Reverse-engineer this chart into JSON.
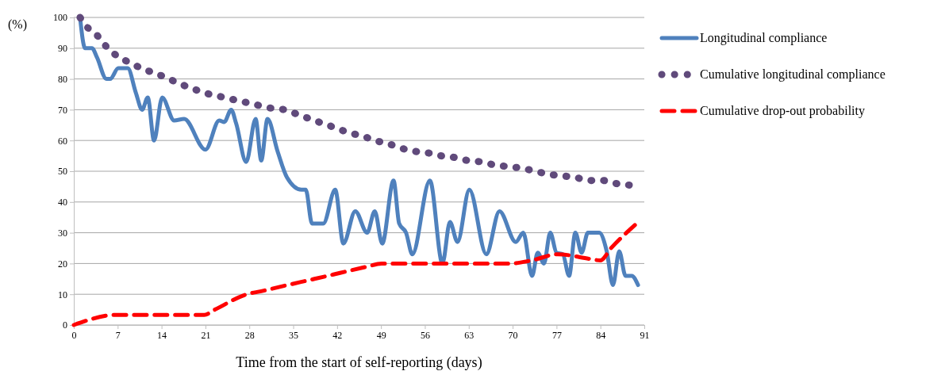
{
  "chart_data": {
    "type": "line",
    "xlabel": "Time from the start of self-reporting (days)",
    "ylabel": "(%)",
    "xlim": [
      0,
      91
    ],
    "xticks": [
      0,
      7,
      14,
      21,
      28,
      35,
      42,
      49,
      56,
      63,
      70,
      77,
      84,
      91
    ],
    "ylim": [
      0,
      100
    ],
    "yticks": [
      0,
      10,
      20,
      30,
      40,
      50,
      60,
      70,
      80,
      90,
      100
    ],
    "grid": "y",
    "legend": "right",
    "marker": "none",
    "series": [
      {
        "name": "Longitudinal compliance",
        "color": "#4f81bd",
        "line_style": "solid",
        "x": [
          1,
          1.8,
          2.9,
          3.7,
          5.2,
          5.8,
          7.1,
          8.6,
          9.9,
          10.9,
          11.8,
          12.8,
          14.1,
          16,
          17.6,
          21,
          23.2,
          24,
          25.1,
          25.9,
          27.5,
          29,
          29.9,
          30.9,
          32.5,
          34,
          36.3,
          37,
          38,
          39.8,
          41.7,
          43,
          44.9,
          46.8,
          48,
          49.2,
          51,
          51.9,
          53,
          54,
          56.8,
          58.8,
          60,
          61.2,
          63.1,
          65.8,
          67.9,
          70.5,
          71.7,
          73.1,
          74,
          75,
          76,
          77,
          78,
          79,
          80,
          81,
          82,
          83,
          83.8,
          85,
          86,
          87,
          88,
          89,
          90
        ],
        "values": [
          100,
          90,
          90,
          87,
          80,
          80,
          83.5,
          83.5,
          75.5,
          70,
          74,
          60,
          74,
          66.5,
          67,
          57,
          66.5,
          66,
          70,
          65.5,
          53,
          67,
          53.5,
          67,
          56.5,
          48,
          44,
          44,
          33,
          33,
          44,
          26.5,
          37,
          30,
          37,
          26.5,
          47,
          33,
          30,
          23,
          47,
          20,
          33.5,
          27,
          44,
          23,
          37,
          27,
          30,
          16,
          23.5,
          20,
          30,
          23.5,
          23,
          16,
          30,
          23.5,
          30,
          30,
          30,
          24,
          13,
          24,
          16,
          16,
          13
        ]
      },
      {
        "name": "Cumulative longitudinal compliance",
        "color": "#604a7b",
        "line_style": "dotted",
        "x": [
          1,
          2.3,
          3.8,
          5.2,
          6.9,
          8.7,
          10.8,
          12.7,
          14.7,
          16.8,
          18.8,
          20.8,
          22.9,
          25,
          27.2,
          29.3,
          31.5,
          33.6,
          35.7,
          37.7,
          39.8,
          41.9,
          43.9,
          46,
          48,
          50.1,
          52.2,
          54.3,
          56.4,
          58.6,
          60.7,
          62.8,
          65.1,
          67.2,
          69.3,
          71.4,
          73.6,
          75.8,
          77.9,
          80,
          82.2,
          84.3,
          86.5,
          88.6
        ],
        "values": [
          100,
          96.5,
          94,
          90.5,
          87.5,
          85.5,
          83.5,
          82,
          80.5,
          78.5,
          77,
          75.5,
          74.5,
          73.5,
          72.5,
          71.5,
          70.5,
          70,
          68.5,
          67,
          65.5,
          64,
          62.5,
          61.5,
          60,
          59,
          57.5,
          56.5,
          56,
          55,
          54.5,
          53.5,
          53,
          52,
          51.5,
          51,
          50,
          49,
          48.5,
          48,
          47,
          47,
          46,
          45.5
        ]
      },
      {
        "name": "Cumulative drop-out probability",
        "color": "#ff0000",
        "line_style": "dashed",
        "x": [
          0,
          6.8,
          20.8,
          22.5,
          27.6,
          29.9,
          34.1,
          38.4,
          42.6,
          46.8,
          49.1,
          69.6,
          73,
          77.2,
          82.3,
          84,
          85.7,
          89.5
        ],
        "values": [
          0,
          3.3,
          3.3,
          5,
          10,
          11,
          13,
          15,
          17,
          19,
          20,
          20,
          21,
          23,
          21.5,
          21,
          25,
          32.5
        ]
      }
    ]
  }
}
